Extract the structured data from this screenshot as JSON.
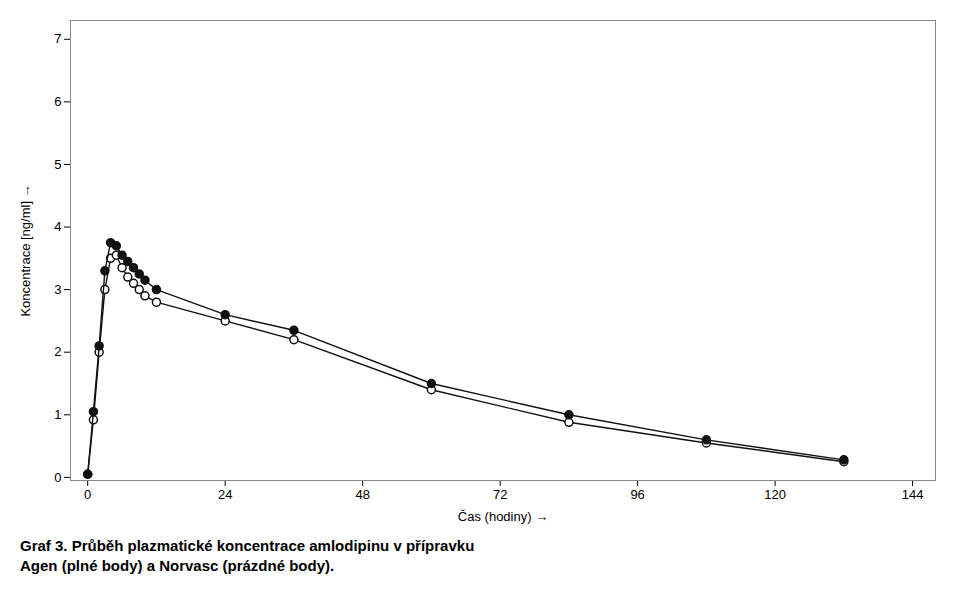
{
  "chart_data": {
    "type": "line",
    "title": "Graf 3. Průběh plazmatické koncentrace amlodipinu v přípravku\nAgen (plné body) a Norvasc (prázdné body).",
    "x_label": "Čas (hodiny)",
    "y_label": "Koncentrace [ng/ml]",
    "x": [
      0,
      1,
      2,
      3,
      4,
      5,
      6,
      7,
      8,
      9,
      10,
      12,
      24,
      36,
      60,
      84,
      108,
      132
    ],
    "series": [
      {
        "color": "#111111",
        "marker": "circle_open",
        "values": [
          0.05,
          0.92,
          2.0,
          3.0,
          3.5,
          3.55,
          3.35,
          3.2,
          3.1,
          3.0,
          2.9,
          2.8,
          2.5,
          2.2,
          1.4,
          0.88,
          0.55,
          0.25
        ]
      },
      {
        "color": "#111111",
        "marker": "circle",
        "values": [
          0.05,
          1.05,
          2.1,
          3.3,
          3.75,
          3.7,
          3.55,
          3.45,
          3.35,
          3.25,
          3.15,
          3.0,
          2.6,
          2.35,
          1.5,
          1.0,
          0.6,
          0.28
        ]
      }
    ],
    "xlim": [
      -3,
      148
    ],
    "ylim": [
      -0.05,
      7.3
    ],
    "xticks": [
      0,
      24,
      48,
      72,
      96,
      120,
      144
    ],
    "yticks": [
      0,
      1,
      2,
      3,
      4,
      5,
      6,
      7
    ],
    "grid": false
  }
}
